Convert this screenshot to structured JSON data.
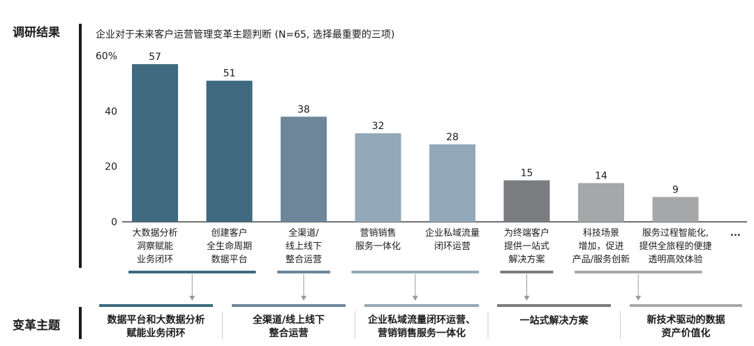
{
  "section_labels": {
    "findings": "调研结果",
    "themes": "变革主题"
  },
  "chart_data": {
    "type": "bar",
    "title": "企业对于未来客户运营管理变革主题判断 (N=65, 选择最重要的三项)",
    "ylim": [
      0,
      60
    ],
    "yticks": [
      {
        "value": 0,
        "label": "0"
      },
      {
        "value": 20,
        "label": "20"
      },
      {
        "value": 40,
        "label": "40"
      },
      {
        "value": 60,
        "label": "60%"
      }
    ],
    "grid": false,
    "categories": [
      [
        "大数据分析",
        "洞察赋能",
        "业务闭环"
      ],
      [
        "创建客户",
        "全生命周期",
        "数据平台"
      ],
      [
        "全渠道/",
        "线上线下",
        "整合运营"
      ],
      [
        "营销销售",
        "服务一体化"
      ],
      [
        "企业私域流量",
        "闭环运营"
      ],
      [
        "为终端客户",
        "提供一站式",
        "解决方案"
      ],
      [
        "科技场景",
        "增加，促进",
        "产品/服务创新"
      ],
      [
        "服务过程智能化,",
        "提供全旅程的便捷",
        "透明高效体验"
      ]
    ],
    "values": [
      57,
      51,
      38,
      32,
      28,
      15,
      14,
      9
    ],
    "value_labels": [
      "57",
      "51",
      "38",
      "32",
      "28",
      "15",
      "14",
      "9"
    ],
    "bar_colors": [
      "#3f6a80",
      "#3f6a80",
      "#6e869a",
      "#93a8b8",
      "#93a8b8",
      "#7a7c80",
      "#a6a7a9",
      "#a6a7a9"
    ],
    "ellipsis": "..."
  },
  "theme_groups": [
    {
      "bars": [
        0,
        1
      ],
      "color": "#3f6a80",
      "label": [
        "数据平台和大数据分析",
        "赋能业务闭环"
      ]
    },
    {
      "bars": [
        2,
        2
      ],
      "color": "#6e869a",
      "label": [
        "全渠道/线上线下",
        "整合运营"
      ]
    },
    {
      "bars": [
        3,
        4
      ],
      "color": "#93a8b8",
      "label": [
        "企业私域流量闭环运营、",
        "营销销售服务一体化"
      ]
    },
    {
      "bars": [
        5,
        5
      ],
      "color": "#7a7c80",
      "label": [
        "一站式解决方案"
      ]
    },
    {
      "bars": [
        6,
        7
      ],
      "color": "#a6a7a9",
      "label": [
        "新技术驱动的数据",
        "资产价值化"
      ]
    }
  ]
}
